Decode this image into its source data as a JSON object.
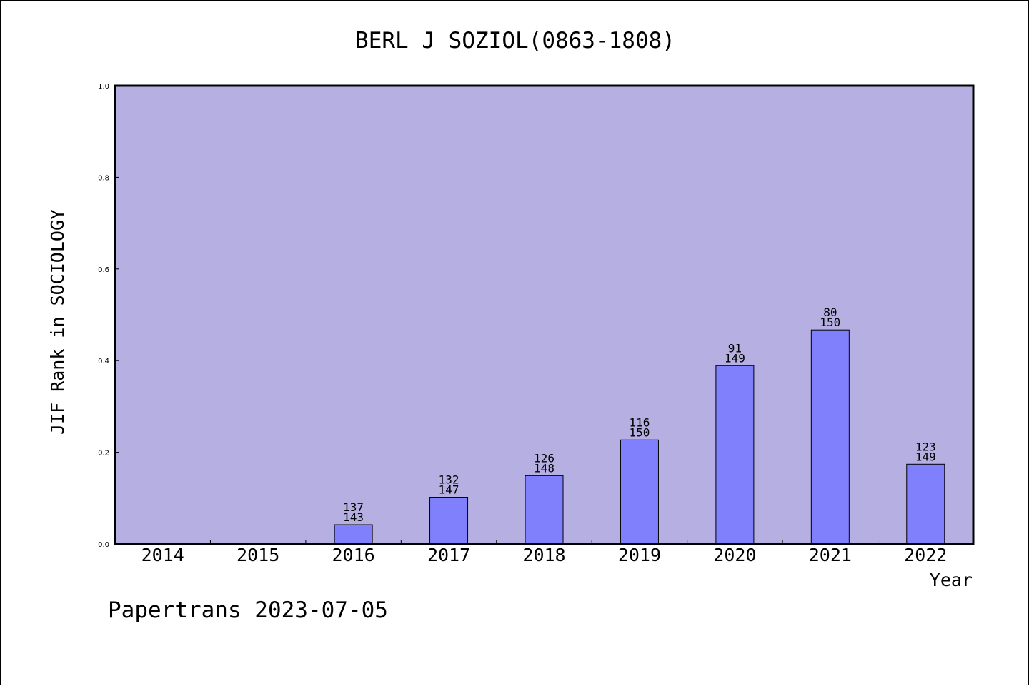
{
  "chart_data": {
    "type": "bar",
    "title": "BERL J SOZIOL(0863-1808)",
    "xlabel": "Year",
    "ylabel": "JIF Rank in SOCIOLOGY",
    "ylim": [
      0,
      1.0
    ],
    "yticks": [
      "0.0",
      "0.2",
      "0.4",
      "0.6",
      "0.8",
      "1.0"
    ],
    "categories": [
      "2014",
      "2015",
      "2016",
      "2017",
      "2018",
      "2019",
      "2020",
      "2021",
      "2022"
    ],
    "values": [
      null,
      null,
      0.042,
      0.102,
      0.149,
      0.227,
      0.389,
      0.467,
      0.174
    ],
    "rank": [
      null,
      null,
      "137",
      "132",
      "126",
      "116",
      "91",
      "80",
      "123"
    ],
    "total": [
      null,
      null,
      "143",
      "147",
      "148",
      "150",
      "149",
      "150",
      "149"
    ],
    "grid": false,
    "legend": "none"
  },
  "footer": "Papertrans 2023-07-05",
  "colors": {
    "plot_background": "#b6b0e2",
    "bar_fill": "#8080fc",
    "bar_stroke": "#000000",
    "axis": "#000000"
  }
}
